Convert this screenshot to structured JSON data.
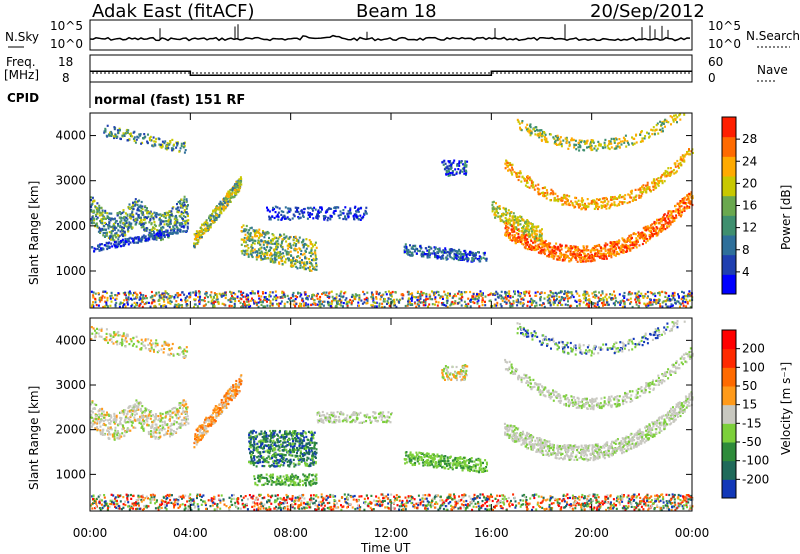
{
  "header": {
    "site": "Adak East (fitACF)",
    "beam": "Beam 18",
    "date": "20/Sep/2012"
  },
  "chart_data": [
    {
      "type": "line",
      "panel": "noise",
      "left_label": "N.Sky",
      "right_label": "N.Search",
      "left_ticks": [
        "10^5",
        "10^0"
      ],
      "right_ticks": [
        "10^5",
        "10^0"
      ]
    },
    {
      "type": "line",
      "panel": "frequency",
      "left_label_1": "Freq.",
      "left_label_2": "[MHz]",
      "left_ticks": [
        "18",
        "8"
      ],
      "right_label": "Nave",
      "right_ticks": [
        "60",
        "0"
      ],
      "freq_steps": [
        {
          "start": "00:00",
          "end": "04:00",
          "value": 12
        },
        {
          "start": "04:00",
          "end": "16:00",
          "value": 10.5
        },
        {
          "start": "16:00",
          "end": "24:00",
          "value": 12
        }
      ],
      "freq_ylim": [
        8,
        18
      ]
    },
    {
      "type": "table",
      "panel": "cpid",
      "label": "CPID",
      "value": "normal (fast) 151 RF"
    },
    {
      "type": "heatmap",
      "panel": "power",
      "ylabel": "Slant Range [km]",
      "yticks": [
        "4000",
        "3000",
        "2000",
        "1000"
      ],
      "ylim": [
        180,
        4500
      ],
      "colorbar_label": "Power [dB]",
      "colorbar_ticks": [
        "28",
        "24",
        "20",
        "16",
        "12",
        "8",
        "4"
      ],
      "colorbar_range": [
        0,
        30
      ]
    },
    {
      "type": "heatmap",
      "panel": "velocity",
      "ylabel": "Slant Range [km]",
      "yticks": [
        "4000",
        "3000",
        "2000",
        "1000"
      ],
      "ylim": [
        180,
        4500
      ],
      "colorbar_label": "Velocity [m s⁻¹]",
      "colorbar_ticks": [
        "200",
        "100",
        "50",
        "15",
        "-15",
        "-50",
        "-100",
        "-200"
      ],
      "x_axis_label": "Time UT",
      "xticks": [
        "00:00",
        "04:00",
        "08:00",
        "12:00",
        "16:00",
        "20:00",
        "00:00"
      ]
    }
  ],
  "colors": {
    "power_scale": [
      "#0000ff",
      "#1f3fb0",
      "#2e6f9a",
      "#3f8f6f",
      "#6aa84f",
      "#c8c800",
      "#ffaa00",
      "#ff6a00",
      "#ff1f00"
    ],
    "velocity_scale": [
      "#1238b8",
      "#1f6a5a",
      "#2e8b3a",
      "#7ccf3a",
      "#c8c8c0",
      "#ff9a1a",
      "#ff6a00",
      "#ff2a00",
      "#ff0000"
    ]
  }
}
